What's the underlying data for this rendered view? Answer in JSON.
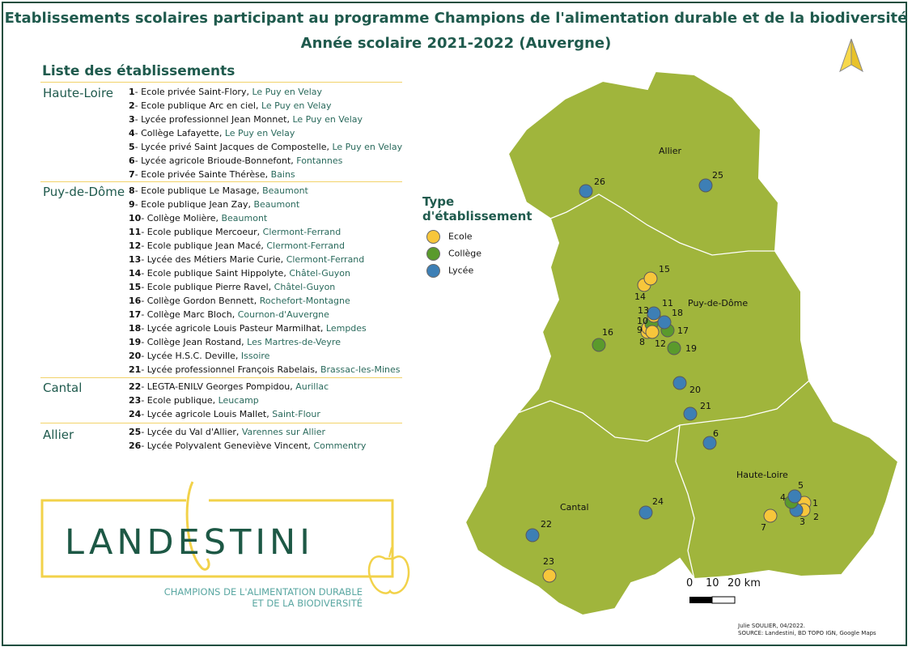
{
  "title": {
    "line1": "Etablissements scolaires participant au programme Champions de l'alimentation durable et de la biodiversité",
    "line2": "Année scolaire 2021-2022 (Auvergne)"
  },
  "list": {
    "heading": "Liste des établissements",
    "groups": [
      {
        "region": "Haute-Loire",
        "items": [
          {
            "num": "1",
            "name": "Ecole privée Saint-Flory,",
            "town": "Le Puy en Velay"
          },
          {
            "num": "2",
            "name": "Ecole publique Arc en ciel,",
            "town": "Le Puy en Velay"
          },
          {
            "num": "3",
            "name": "Lycée professionnel Jean Monnet,",
            "town": "Le Puy en Velay"
          },
          {
            "num": "4",
            "name": "Collège Lafayette,",
            "town": "Le Puy en Velay"
          },
          {
            "num": "5",
            "name": "Lycée privé Saint Jacques de Compostelle,",
            "town": "Le Puy en Velay"
          },
          {
            "num": "6",
            "name": "Lycée agricole Brioude-Bonnefont,",
            "town": "Fontannes"
          },
          {
            "num": "7",
            "name": "Ecole privée Sainte Thérèse,",
            "town": "Bains"
          }
        ]
      },
      {
        "region": "Puy-de-Dôme",
        "items": [
          {
            "num": "8",
            "name": "Ecole publique Le Masage,",
            "town": "Beaumont"
          },
          {
            "num": "9",
            "name": "Ecole publique Jean Zay,",
            "town": "Beaumont"
          },
          {
            "num": "10",
            "name": "Collège Molière,",
            "town": "Beaumont"
          },
          {
            "num": "11",
            "name": "Ecole publique Mercoeur,",
            "town": "Clermont-Ferrand"
          },
          {
            "num": "12",
            "name": "Ecole publique Jean Macé,",
            "town": "Clermont-Ferrand"
          },
          {
            "num": "13",
            "name": "Lycée des Métiers Marie Curie,",
            "town": "Clermont-Ferrand"
          },
          {
            "num": "14",
            "name": "Ecole publique Saint Hippolyte,",
            "town": "Châtel-Guyon"
          },
          {
            "num": "15",
            "name": "Ecole publique Pierre Ravel,",
            "town": "Châtel-Guyon"
          },
          {
            "num": "16",
            "name": "Collège Gordon Bennett,",
            "town": "Rochefort-Montagne"
          },
          {
            "num": "17",
            "name": "Collège Marc Bloch,",
            "town": "Cournon-d'Auvergne"
          },
          {
            "num": "18",
            "name": "Lycée agricole Louis Pasteur Marmilhat,",
            "town": "Lempdes"
          },
          {
            "num": "19",
            "name": "Collège Jean Rostand,",
            "town": "Les Martres-de-Veyre"
          },
          {
            "num": "20",
            "name": "Lycée H.S.C. Deville,",
            "town": "Issoire"
          },
          {
            "num": "21",
            "name": "Lycée professionnel François Rabelais,",
            "town": "Brassac-les-Mines"
          }
        ]
      },
      {
        "region": "Cantal",
        "items": [
          {
            "num": "22",
            "name": "LEGTA-ENILV Georges Pompidou,",
            "town": "Aurillac"
          },
          {
            "num": "23",
            "name": "Ecole publique,",
            "town": "Leucamp"
          },
          {
            "num": "24",
            "name": "Lycée agricole Louis Mallet,",
            "town": "Saint-Flour"
          }
        ]
      },
      {
        "region": "Allier",
        "items": [
          {
            "num": "25",
            "name": "Lycée du Val d'Allier,",
            "town": "Varennes sur Allier"
          },
          {
            "num": "26",
            "name": "Lycée Polyvalent Geneviève Vincent,",
            "town": "Commentry"
          }
        ]
      }
    ]
  },
  "legend": {
    "title_line1": "Type",
    "title_line2": "d'établissement",
    "items": [
      {
        "label": "Ecole",
        "color": "#f7c63b"
      },
      {
        "label": "Collège",
        "color": "#5a9a2c"
      },
      {
        "label": "Lycée",
        "color": "#3d7fb5"
      }
    ]
  },
  "map": {
    "fill_color": "#a0b53c",
    "departments": [
      "Allier",
      "Puy-de-Dôme",
      "Cantal",
      "Haute-Loire"
    ],
    "scale_labels": [
      "0",
      "10",
      "20 km"
    ],
    "markers": [
      {
        "num": "1",
        "type": "Ecole"
      },
      {
        "num": "2",
        "type": "Ecole"
      },
      {
        "num": "3",
        "type": "Lycée"
      },
      {
        "num": "4",
        "type": "Collège"
      },
      {
        "num": "5",
        "type": "Lycée"
      },
      {
        "num": "6",
        "type": "Lycée"
      },
      {
        "num": "7",
        "type": "Ecole"
      },
      {
        "num": "8",
        "type": "Ecole"
      },
      {
        "num": "9",
        "type": "Ecole"
      },
      {
        "num": "10",
        "type": "Collège"
      },
      {
        "num": "11",
        "type": "Ecole"
      },
      {
        "num": "12",
        "type": "Ecole"
      },
      {
        "num": "13",
        "type": "Lycée"
      },
      {
        "num": "14",
        "type": "Ecole"
      },
      {
        "num": "15",
        "type": "Ecole"
      },
      {
        "num": "16",
        "type": "Collège"
      },
      {
        "num": "17",
        "type": "Collège"
      },
      {
        "num": "18",
        "type": "Lycée"
      },
      {
        "num": "19",
        "type": "Collège"
      },
      {
        "num": "20",
        "type": "Lycée"
      },
      {
        "num": "21",
        "type": "Lycée"
      },
      {
        "num": "22",
        "type": "Lycée"
      },
      {
        "num": "23",
        "type": "Ecole"
      },
      {
        "num": "24",
        "type": "Lycée"
      },
      {
        "num": "25",
        "type": "Lycée"
      },
      {
        "num": "26",
        "type": "Lycée"
      }
    ]
  },
  "logo": {
    "wordmark": "LANDESTINI",
    "tagline1": "CHAMPIONS DE L'ALIMENTATION DURABLE",
    "tagline2": "ET DE LA BIODIVERSITÉ"
  },
  "credits": {
    "line1": "Julie SOULIER, 04/2022.",
    "line2": "SOURCE: Landestini, BD TOPO IGN, Google Maps"
  }
}
